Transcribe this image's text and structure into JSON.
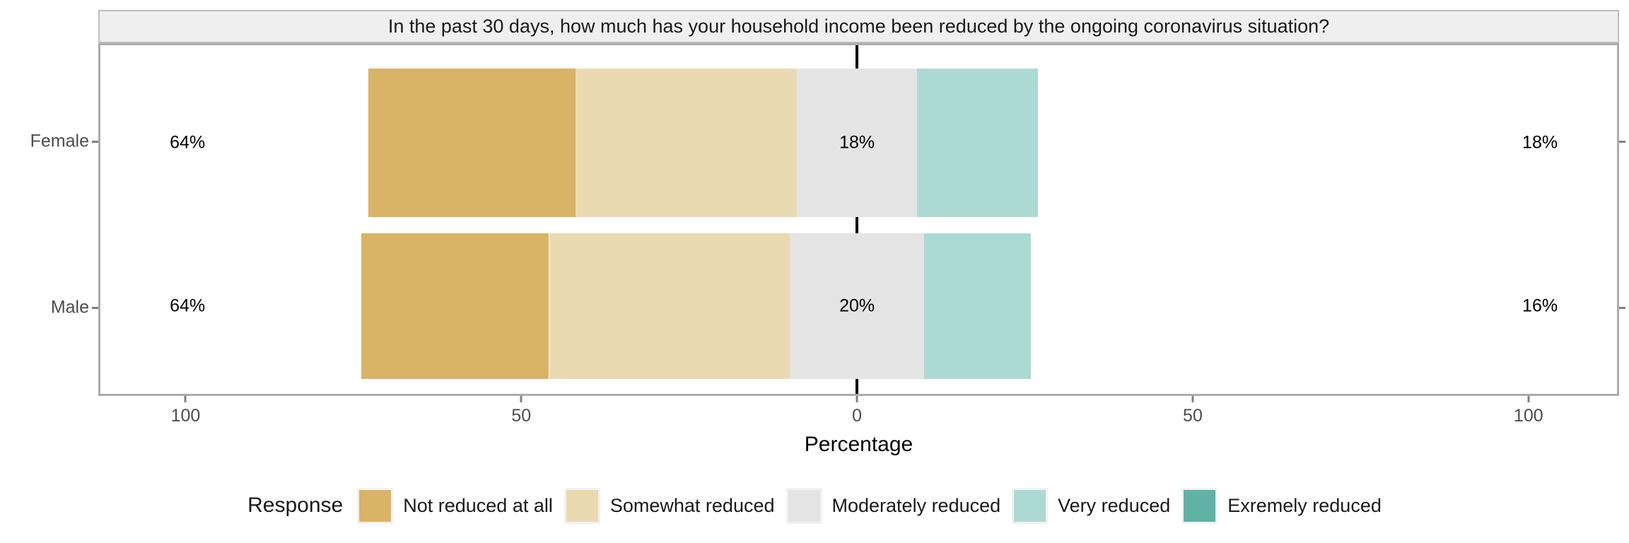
{
  "facet_title": "In the past 30 days, how much has your household income been reduced by the ongoing coronavirus situation?",
  "legend": {
    "title": "Response"
  },
  "colors": {
    "strip_bg": "#EFEFEF",
    "panel_border": "#ACACAC",
    "axis_text": "#4D4D4D",
    "zero_line": "#000000",
    "legend_key_bg": "#F2F2F2"
  },
  "chart_data": {
    "type": "bar",
    "subtype": "horizontal-diverging-stacked-likert",
    "title": "In the past 30 days, how much has your household income been reduced by the ongoing coronavirus situation?",
    "categories": [
      "Female",
      "Male"
    ],
    "series": [
      {
        "name": "Not reduced at all",
        "color": "#D9B366",
        "values": [
          31,
          28
        ]
      },
      {
        "name": "Somewhat reduced",
        "color": "#EADAB2",
        "values": [
          33,
          36
        ]
      },
      {
        "name": "Moderately reduced",
        "color": "#E4E4E4",
        "values": [
          18,
          20
        ]
      },
      {
        "name": "Very reduced",
        "color": "#ADD9D4",
        "values": [
          18,
          16
        ]
      },
      {
        "name": "Exremely reduced",
        "color": "#60B1A6",
        "values": [
          0,
          0
        ]
      }
    ],
    "neutral_series": "Moderately reduced",
    "annotations": {
      "left_totals": [
        "64%",
        "64%"
      ],
      "center_labels": [
        "18%",
        "20%"
      ],
      "right_totals": [
        "18%",
        "16%"
      ]
    },
    "label_positions": {
      "left": -100,
      "center": 0,
      "right": 102
    },
    "xlabel": "Percentage",
    "xlim": [
      -113,
      113.5
    ],
    "xticks": [
      -100,
      -50,
      0,
      50,
      100
    ],
    "xtick_labels": [
      "100",
      "50",
      "0",
      "50",
      "100"
    ],
    "grid": false,
    "legend_position": "bottom"
  }
}
